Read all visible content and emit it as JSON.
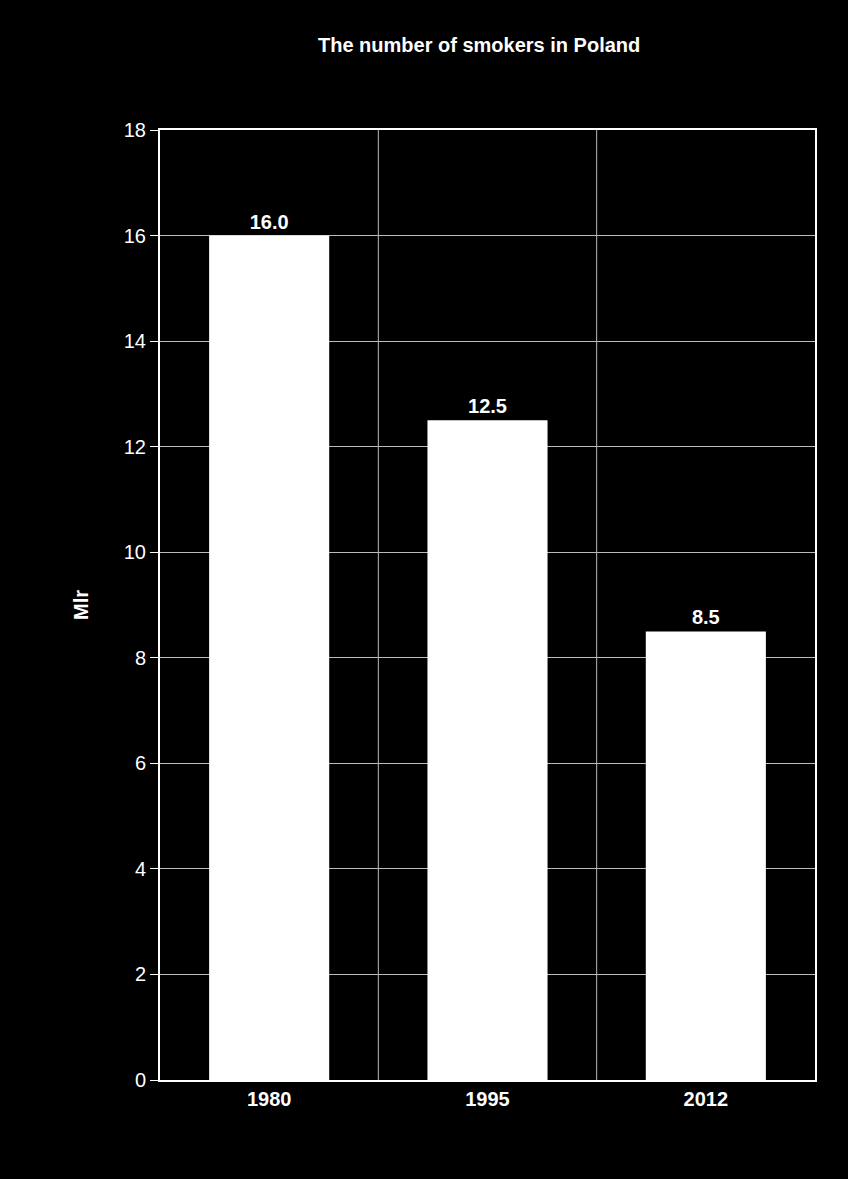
{
  "chart_data": {
    "type": "bar",
    "title": "The number of smokers in Poland",
    "y_label": "Mlr",
    "categories": [
      "1980",
      "1995",
      "2012"
    ],
    "values": [
      16.0,
      12.5,
      8.5
    ],
    "value_labels": [
      "16.0",
      "12.5",
      "8.5"
    ],
    "color": "#ffffff",
    "ylim": [
      0,
      18
    ],
    "yticks": [
      0,
      2,
      4,
      6,
      8,
      10,
      12,
      14,
      16,
      18
    ],
    "grid": true,
    "data_labels": true
  }
}
